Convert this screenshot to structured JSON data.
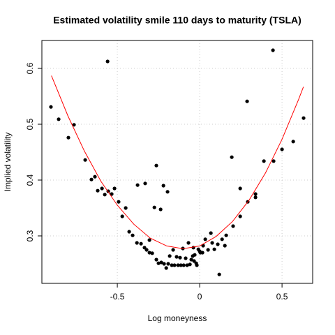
{
  "chart_data": {
    "type": "scatter",
    "title": "Estimated volatility smile 110 days to maturity (TSLA)",
    "xlabel": "Log moneyness",
    "ylabel": "Implied volatility",
    "xlim": [
      -0.958,
      0.686
    ],
    "ylim": [
      0.215,
      0.65
    ],
    "xticks": [
      -0.5,
      0.0,
      0.5
    ],
    "yticks": [
      0.3,
      0.4,
      0.5,
      0.6
    ],
    "grid": true,
    "series": [
      {
        "color": "#000000",
        "type": "scatter",
        "x": [
          -0.903,
          -0.856,
          -0.797,
          -0.763,
          -0.695,
          -0.657,
          -0.636,
          -0.619,
          -0.593,
          -0.576,
          -0.559,
          -0.555,
          -0.534,
          -0.517,
          -0.492,
          -0.47,
          -0.449,
          -0.428,
          -0.407,
          -0.381,
          -0.377,
          -0.356,
          -0.331,
          -0.335,
          -0.322,
          -0.305,
          -0.305,
          -0.288,
          -0.275,
          -0.263,
          -0.263,
          -0.25,
          -0.237,
          -0.233,
          -0.22,
          -0.216,
          -0.203,
          -0.195,
          -0.191,
          -0.182,
          -0.169,
          -0.161,
          -0.153,
          -0.14,
          -0.131,
          -0.119,
          -0.114,
          -0.102,
          -0.097,
          -0.085,
          -0.076,
          -0.068,
          -0.059,
          -0.051,
          -0.042,
          -0.038,
          -0.034,
          -0.03,
          -0.021,
          -0.017,
          -0.008,
          0.0,
          0.004,
          0.017,
          0.021,
          0.034,
          0.051,
          0.068,
          0.076,
          0.089,
          0.11,
          0.119,
          0.136,
          0.153,
          0.161,
          0.195,
          0.203,
          0.246,
          0.246,
          0.288,
          0.292,
          0.339,
          0.339,
          0.39,
          0.445,
          0.449,
          0.5,
          0.568,
          0.631
        ],
        "values": [
          0.531,
          0.509,
          0.476,
          0.499,
          0.436,
          0.401,
          0.406,
          0.381,
          0.385,
          0.374,
          0.6125,
          0.38,
          0.375,
          0.385,
          0.361,
          0.335,
          0.35,
          0.3075,
          0.301,
          0.2875,
          0.391,
          0.286,
          0.394,
          0.279,
          0.275,
          0.2925,
          0.27,
          0.269,
          0.351,
          0.426,
          0.2575,
          0.251,
          0.3475,
          0.2525,
          0.39,
          0.25,
          0.2425,
          0.379,
          0.25,
          0.264,
          0.2475,
          0.275,
          0.2475,
          0.2625,
          0.2475,
          0.261,
          0.2475,
          0.2775,
          0.2475,
          0.26,
          0.2475,
          0.2875,
          0.249,
          0.2575,
          0.264,
          0.279,
          0.255,
          0.266,
          0.251,
          0.2475,
          0.276,
          0.2725,
          0.27,
          0.27,
          0.2825,
          0.294,
          0.275,
          0.305,
          0.2875,
          0.276,
          0.285,
          0.231,
          0.294,
          0.2825,
          0.301,
          0.441,
          0.3175,
          0.385,
          0.335,
          0.541,
          0.361,
          0.375,
          0.369,
          0.434,
          0.6325,
          0.434,
          0.455,
          0.469,
          0.511
        ]
      },
      {
        "color": "#ff0000",
        "type": "line",
        "x": [
          -0.9,
          -0.8,
          -0.7,
          -0.6,
          -0.5,
          -0.4,
          -0.3,
          -0.2,
          -0.1,
          0.0,
          0.1,
          0.2,
          0.3,
          0.4,
          0.5,
          0.6,
          0.63
        ],
        "values": [
          0.587,
          0.515,
          0.452,
          0.398,
          0.355,
          0.321,
          0.296,
          0.282,
          0.277,
          0.282,
          0.299,
          0.326,
          0.364,
          0.413,
          0.473,
          0.544,
          0.567
        ]
      }
    ]
  }
}
